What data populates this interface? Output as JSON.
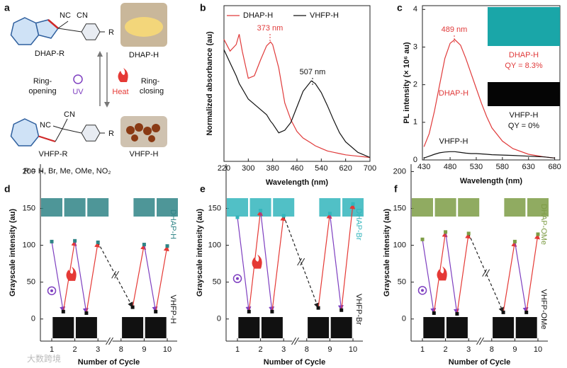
{
  "panel_a": {
    "panel": "a",
    "top_nc": "NC",
    "top_cn": "CN",
    "top_r": "R",
    "top_name": "DHAP-R",
    "top_photo": "DHAP-H",
    "open_1": "Ring-",
    "open_2": "opening",
    "uv": "UV",
    "heat": "Heat",
    "close_1": "Ring-",
    "close_2": "closing",
    "bot_cn": "CN",
    "bot_nc": "NC",
    "bot_r": "R",
    "bot_name": "VHFP-R",
    "bot_photo": "VHFP-H",
    "substituents": "R = H, Br, Me, OMe, NO₂"
  },
  "watermark": "大数跨境",
  "chart_data": [
    {
      "type": "line",
      "panel": "b",
      "xlabel": "Wavelength (nm)",
      "ylabel": "Normalized absorbance (au)",
      "x": [
        220,
        240,
        260,
        270,
        280,
        300,
        320,
        340,
        360,
        373,
        380,
        400,
        420,
        440,
        460,
        480,
        507,
        520,
        540,
        560,
        580,
        600,
        620,
        660,
        700
      ],
      "series": [
        {
          "name": "DHAP-H",
          "color": "#e03a3a",
          "values": [
            0.94,
            0.85,
            0.9,
            0.98,
            0.85,
            0.64,
            0.66,
            0.78,
            0.89,
            0.92,
            0.9,
            0.72,
            0.45,
            0.32,
            0.23,
            0.18,
            0.14,
            0.12,
            0.1,
            0.08,
            0.07,
            0.06,
            0.05,
            0.04,
            0.03
          ]
        },
        {
          "name": "VHFP-H",
          "color": "#111111",
          "values": [
            0.86,
            0.76,
            0.66,
            0.6,
            0.56,
            0.48,
            0.44,
            0.4,
            0.36,
            0.31,
            0.29,
            0.22,
            0.24,
            0.3,
            0.42,
            0.54,
            0.62,
            0.6,
            0.53,
            0.43,
            0.32,
            0.22,
            0.15,
            0.07,
            0.03
          ]
        }
      ],
      "xlim": [
        220,
        700
      ],
      "xticks": [
        220,
        300,
        380,
        460,
        540,
        620,
        700
      ],
      "ylim": [
        0,
        1.2
      ],
      "legend": "top",
      "annotations": [
        {
          "text": "373 nm",
          "color": "#e03a3a"
        },
        {
          "text": "507 nm",
          "color": "#111111"
        }
      ]
    },
    {
      "type": "line",
      "panel": "c",
      "xlabel": "Wavelength (nm)",
      "ylabel": "PL intensity (× 10⁶ au)",
      "x": [
        430,
        440,
        450,
        460,
        470,
        480,
        489,
        500,
        510,
        520,
        530,
        540,
        550,
        560,
        580,
        600,
        630,
        660,
        680
      ],
      "series": [
        {
          "name": "DHAP-H",
          "color": "#e03a3a",
          "values": [
            0.35,
            0.7,
            1.3,
            2.0,
            2.7,
            3.1,
            3.2,
            3.05,
            2.7,
            2.3,
            1.9,
            1.5,
            1.15,
            0.85,
            0.5,
            0.3,
            0.15,
            0.08,
            0.05
          ]
        },
        {
          "name": "VHFP-H",
          "color": "#111111",
          "values": [
            0.05,
            0.1,
            0.15,
            0.19,
            0.21,
            0.22,
            0.22,
            0.2,
            0.18,
            0.17,
            0.17,
            0.16,
            0.15,
            0.14,
            0.13,
            0.12,
            0.1,
            0.08,
            0.05
          ]
        }
      ],
      "xlim": [
        427,
        690
      ],
      "xticks": [
        430,
        480,
        530,
        580,
        630,
        680
      ],
      "ylim": [
        0,
        4.1
      ],
      "yticks": [
        0,
        1,
        2,
        3,
        4
      ],
      "legend": "inline",
      "annotations": [
        {
          "text": "489 nm",
          "color": "#e03a3a"
        }
      ],
      "insets": [
        {
          "label": "DHAP-H",
          "qy": "QY = 8.3%",
          "color": "#e03a3a",
          "image": "#1aa6a8"
        },
        {
          "label": "VHFP-H",
          "qy": "QY = 0%",
          "color": "#111111",
          "image": "#050505"
        }
      ]
    },
    {
      "type": "cycle",
      "panel": "d",
      "xlabel": "Number of Cycle",
      "ylabel": "Grayscale intensity (au)",
      "x": [
        1,
        1.5,
        2,
        2.5,
        3,
        8.5,
        9,
        9.5,
        10
      ],
      "values": [
        105,
        10,
        106,
        8,
        104,
        16,
        101,
        10,
        99
      ],
      "xticks": [
        1,
        2,
        3,
        8,
        9,
        10
      ],
      "ylim": [
        -30,
        210
      ],
      "yticks": [
        0,
        50,
        100,
        150,
        200
      ],
      "top_label": "DHAP-H",
      "bottom_label": "VHFP-H",
      "colors": {
        "high": "#2f8486",
        "low": "#111111",
        "heat": "#e53935",
        "uv": "#7e3fc0"
      }
    },
    {
      "type": "cycle",
      "panel": "e",
      "xlabel": "Number of Cycle",
      "ylabel": "Grayscale intensity (au)",
      "x": [
        1,
        1.5,
        2,
        2.5,
        3,
        8.5,
        9,
        9.5,
        10
      ],
      "values": [
        138,
        10,
        147,
        10,
        140,
        15,
        143,
        12,
        156
      ],
      "xticks": [
        1,
        2,
        3,
        8,
        9,
        10
      ],
      "ylim": [
        -30,
        210
      ],
      "yticks": [
        0,
        50,
        100,
        150
      ],
      "top_label": "DHAP-Br",
      "bottom_label": "VHFP-Br",
      "colors": {
        "high": "#33b5bc",
        "low": "#111111",
        "heat": "#e53935",
        "uv": "#7e3fc0"
      }
    },
    {
      "type": "cycle",
      "panel": "f",
      "xlabel": "Number of Cycle",
      "ylabel": "Grayscale intensity (au)",
      "x": [
        1,
        1.5,
        2,
        2.5,
        3,
        8.5,
        9,
        9.5,
        10
      ],
      "values": [
        108,
        8,
        118,
        7,
        116,
        9,
        105,
        9,
        115
      ],
      "xticks": [
        1,
        2,
        3,
        8,
        9,
        10
      ],
      "ylim": [
        -30,
        210
      ],
      "yticks": [
        0,
        50,
        100,
        150,
        200
      ],
      "top_label": "DHAP-OMe",
      "bottom_label": "VHFP-OMe",
      "colors": {
        "high": "#7d9c45",
        "low": "#111111",
        "heat": "#e53935",
        "uv": "#7e3fc0"
      }
    }
  ]
}
